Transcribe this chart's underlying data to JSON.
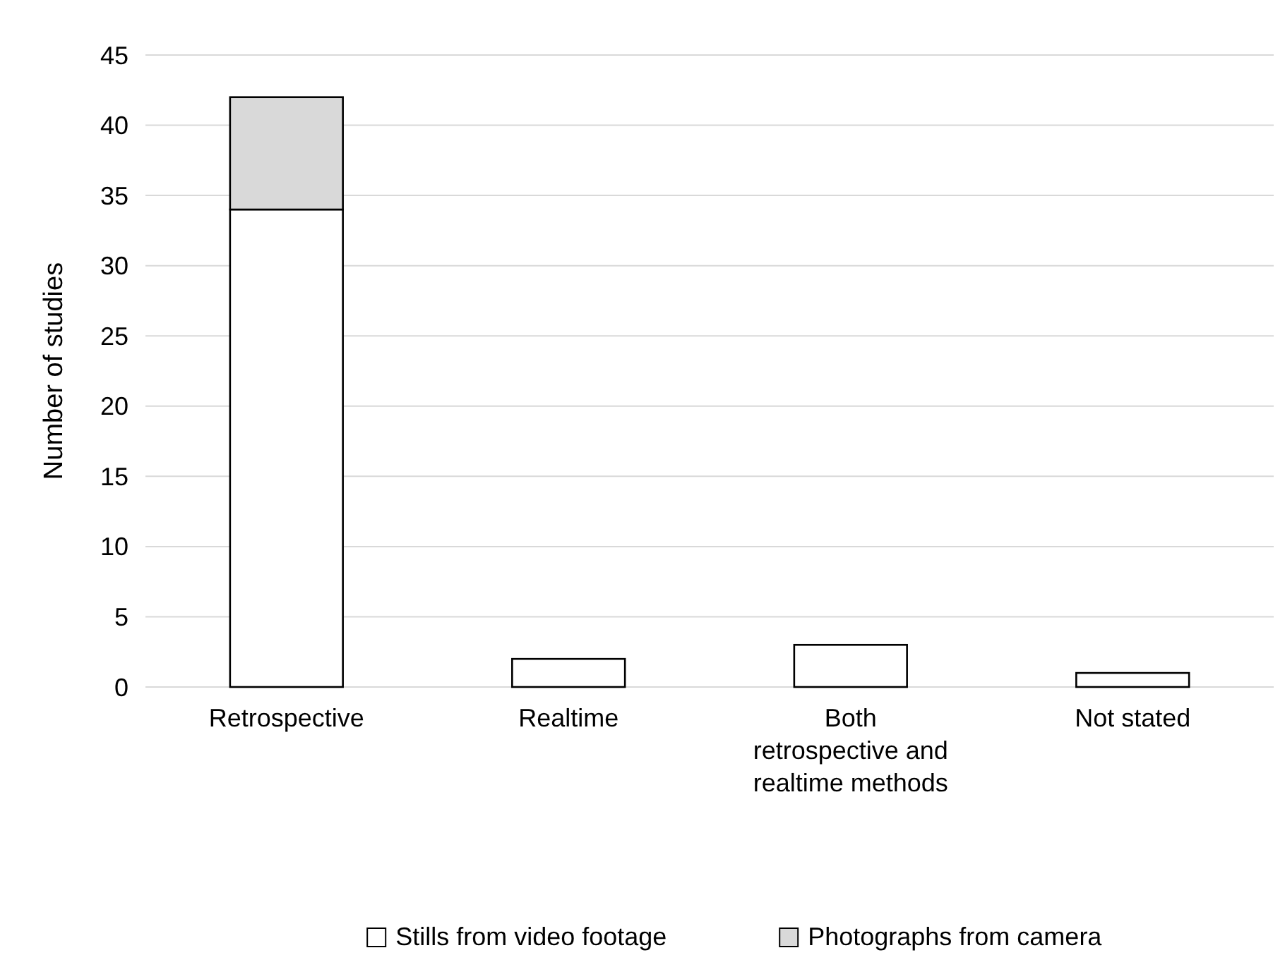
{
  "chart_data": {
    "type": "bar",
    "stacked": true,
    "ylabel": "Number of studies",
    "categories": [
      "Retrospective",
      "Realtime",
      "Both retrospective and realtime methods",
      "Not stated"
    ],
    "series": [
      {
        "name": "Stills from video footage",
        "color": "#ffffff",
        "values": [
          34,
          2,
          3,
          1
        ]
      },
      {
        "name": "Photographs from camera",
        "color": "#d9d9d9",
        "values": [
          8,
          0,
          0,
          0
        ]
      }
    ],
    "ylim": [
      0,
      45
    ],
    "yticks": [
      0,
      5,
      10,
      15,
      20,
      25,
      30,
      35,
      40,
      45
    ],
    "grid": "y",
    "legend": "bottom"
  }
}
